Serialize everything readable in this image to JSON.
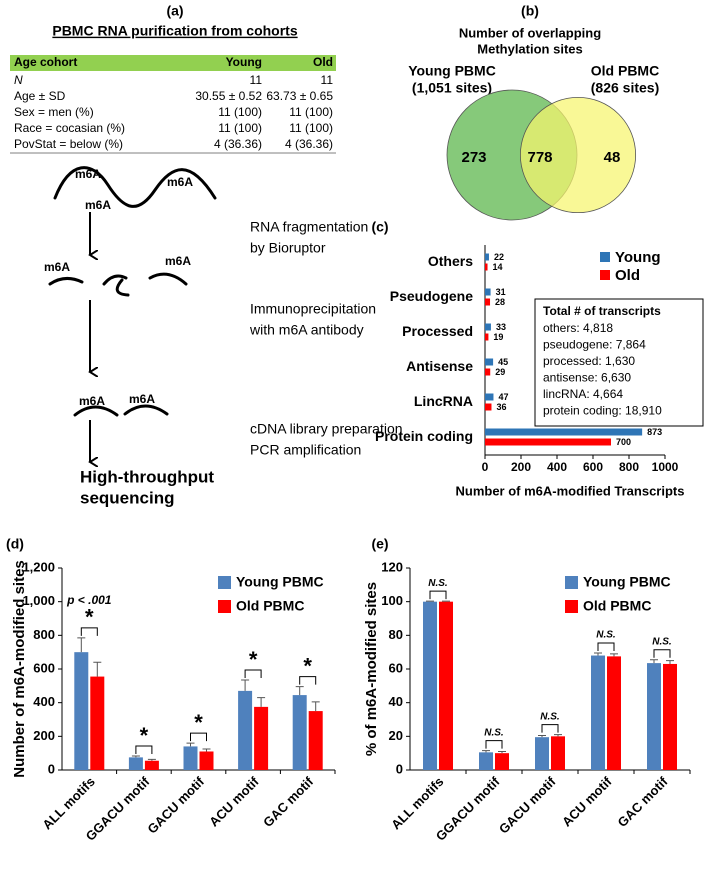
{
  "panel_a": {
    "panel_label": "(a)",
    "title": "PBMC RNA purification from cohorts",
    "table": {
      "header": [
        "Age cohort",
        "Young",
        "Old"
      ],
      "rows": [
        [
          "N",
          "11",
          "11"
        ],
        [
          "Age ± SD",
          "30.55 ± 0.52",
          "63.73 ± 0.65"
        ],
        [
          "Sex = men (%)",
          "11 (100)",
          "11 (100)"
        ],
        [
          "Race = cocasian (%)",
          "11 (100)",
          "11 (100)"
        ],
        [
          "PovStat = below (%)",
          "4 (36.36)",
          "4 (36.36)"
        ]
      ]
    },
    "m6a_labels": [
      "m6A",
      "m6A",
      "m6A",
      "m6A",
      "m6A",
      "m6A",
      "m6A"
    ],
    "steps": [
      [
        "RNA fragmentation",
        "by Bioruptor"
      ],
      [
        "Immunoprecipitation",
        "with m6A antibody"
      ],
      [
        "cDNA library preparation",
        "PCR amplification"
      ]
    ],
    "result": [
      "High-throughput",
      "sequencing"
    ]
  },
  "chart_data": [
    {
      "type": "venn",
      "panel_label": "(b)",
      "title": [
        "Number of overlapping",
        "Methylation sites"
      ],
      "sets": [
        "Young PBMC",
        "Old PBMC"
      ],
      "set_sizes": [
        1051,
        826
      ],
      "set_size_labels": [
        "(1,051 sites)",
        "(826 sites)"
      ],
      "colors": [
        "#86c97a",
        "#f7f56e"
      ],
      "values": [
        273,
        778,
        48
      ]
    },
    {
      "type": "hbar",
      "panel_label": "(c)",
      "categories": [
        "Others",
        "Pseudogene",
        "Processed",
        "Antisense",
        "LincRNA",
        "Protein coding"
      ],
      "series": [
        {
          "name": "Young",
          "color": "#2e75b6",
          "values": [
            22,
            31,
            33,
            45,
            47,
            873
          ]
        },
        {
          "name": "Old",
          "color": "#ff0000",
          "values": [
            14,
            28,
            19,
            29,
            36,
            700
          ]
        }
      ],
      "xlim": [
        0,
        1000
      ],
      "xticks": [
        0,
        200,
        400,
        600,
        800,
        1000
      ],
      "x_label": "Number of m6A-modified Transcripts",
      "box_title": "Total # of transcripts",
      "box_lines": [
        "others: 4,818",
        "pseudogene: 7,864",
        "processed: 1,630",
        "antisense: 6,630",
        "lincRNA: 4,664",
        "protein coding: 18,910"
      ]
    },
    {
      "type": "bar",
      "panel_label": "(d)",
      "categories": [
        "ALL motifs",
        "GGACU motif",
        "GACU motif",
        "ACU motif",
        "GAC motif"
      ],
      "series": [
        {
          "name": "Young PBMC",
          "color": "#4f81bd",
          "values": [
            700,
            75,
            140,
            470,
            445
          ],
          "errors": [
            85,
            8,
            20,
            65,
            50
          ]
        },
        {
          "name": "Old PBMC",
          "color": "#ff0000",
          "values": [
            555,
            55,
            110,
            375,
            350
          ],
          "errors": [
            85,
            8,
            15,
            55,
            55
          ]
        }
      ],
      "ylim": [
        0,
        1200
      ],
      "yticks": [
        0,
        200,
        400,
        600,
        800,
        {
          "value": 1000,
          "label": "1,000"
        },
        {
          "value": 1200,
          "label": "1,200"
        }
      ],
      "y_label": "Number of m6A-modified sites",
      "significance": [
        "*",
        "*",
        "*",
        "*",
        "*"
      ],
      "annotation": "p < .001"
    },
    {
      "type": "bar",
      "panel_label": "(e)",
      "categories": [
        "ALL motifs",
        "GGACU motif",
        "GACU motif",
        "ACU motif",
        "GAC motif"
      ],
      "series": [
        {
          "name": "Young PBMC",
          "color": "#4f81bd",
          "values": [
            100,
            10.5,
            19.5,
            68,
            63.5
          ],
          "errors": [
            0.3,
            1,
            1,
            1.5,
            2
          ]
        },
        {
          "name": "Old PBMC",
          "color": "#ff0000",
          "values": [
            100,
            10,
            20,
            67.5,
            63
          ],
          "errors": [
            0.3,
            1,
            1,
            1.5,
            2
          ]
        }
      ],
      "ylim": [
        0,
        120
      ],
      "yticks": [
        0,
        20,
        40,
        60,
        80,
        100,
        120
      ],
      "y_label": "% of m6A-modified sites",
      "significance": [
        "N.S.",
        "N.S.",
        "N.S.",
        "N.S.",
        "N.S."
      ]
    }
  ]
}
